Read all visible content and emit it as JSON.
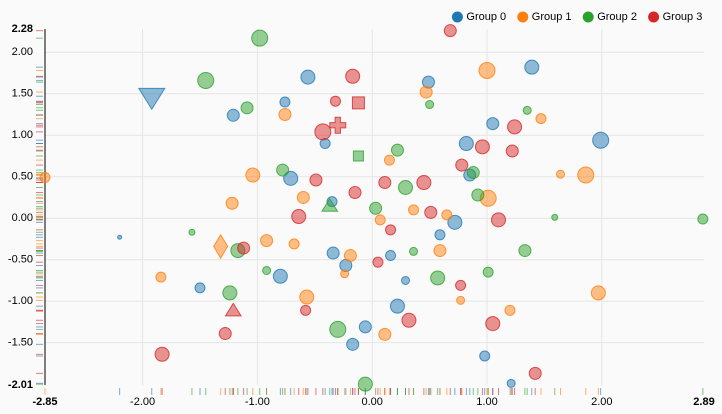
{
  "chart_data": {
    "type": "scatter",
    "xlim": [
      -2.85,
      2.89
    ],
    "ylim": [
      -2.01,
      2.28
    ],
    "xticks": [
      {
        "value": -2,
        "label": "-2.00"
      },
      {
        "value": -1,
        "label": "-1.00"
      },
      {
        "value": 0,
        "label": "0.00"
      },
      {
        "value": 1,
        "label": "1.00"
      },
      {
        "value": 2,
        "label": "2.00"
      }
    ],
    "yticks": [
      {
        "value": 2,
        "label": "2.00"
      },
      {
        "value": 1.5,
        "label": "1.50"
      },
      {
        "value": 1,
        "label": "1.00"
      },
      {
        "value": 0.5,
        "label": "0.50"
      },
      {
        "value": 0,
        "label": "0.00"
      },
      {
        "value": -0.5,
        "label": "-0.50"
      },
      {
        "value": -1,
        "label": "-1.00"
      },
      {
        "value": -1.5,
        "label": "-1.50"
      }
    ],
    "grid": true,
    "legend": "top-right",
    "rug": true,
    "series": [
      {
        "name": "Group 0",
        "color": "#1f77b4",
        "x": [
          -1.92,
          -0.56,
          0.49,
          1.39,
          1.99,
          1.05,
          0.82,
          -0.71,
          -0.41,
          -1.21,
          -0.76,
          0.72,
          -0.23,
          -0.34,
          -0.8,
          0.16,
          -0.06,
          -0.17,
          0.98,
          0.59,
          -1.5,
          -2.2,
          0.22,
          0.85,
          1.21,
          0.29,
          -0.35
        ],
        "y": [
          1.47,
          1.7,
          1.64,
          1.82,
          0.94,
          1.14,
          0.9,
          0.48,
          0.9,
          1.24,
          1.4,
          -0.05,
          -0.57,
          -0.42,
          -0.7,
          -0.45,
          -1.31,
          -1.52,
          -1.66,
          -0.2,
          -0.84,
          -0.23,
          -1.06,
          0.52,
          -1.99,
          -0.75,
          0.2
        ],
        "size": [
          10,
          7,
          6,
          7,
          8,
          6,
          7,
          7,
          5,
          6,
          5,
          7,
          6,
          6,
          7,
          5,
          6,
          6,
          5,
          5,
          5,
          2,
          7,
          6,
          4,
          4,
          5
        ],
        "shape": [
          "triangle-down",
          "circle",
          "circle",
          "circle",
          "circle",
          "circle",
          "circle",
          "circle",
          "circle",
          "circle",
          "circle",
          "circle",
          "circle",
          "circle",
          "circle",
          "circle",
          "circle",
          "circle",
          "circle",
          "circle",
          "circle",
          "circle",
          "circle",
          "circle",
          "circle",
          "circle",
          "circle"
        ]
      },
      {
        "name": "Group 1",
        "color": "#ff7f0e",
        "x": [
          1.0,
          0.47,
          1.47,
          1.86,
          1.01,
          -0.76,
          -1.04,
          -1.22,
          -0.6,
          -0.92,
          -1.32,
          -1.84,
          -0.57,
          0.07,
          0.36,
          -0.19,
          0.65,
          1.2,
          1.97,
          0.11,
          -2.85,
          -0.24,
          -0.68,
          0.77,
          0.59,
          1.64,
          0.15
        ],
        "y": [
          1.78,
          1.52,
          1.2,
          0.52,
          0.24,
          1.25,
          0.52,
          0.18,
          0.25,
          -0.27,
          -0.34,
          -0.71,
          -0.95,
          -0.02,
          0.1,
          -0.45,
          0.04,
          -1.11,
          -0.9,
          -1.4,
          0.49,
          -0.67,
          -0.31,
          -0.99,
          -0.39,
          0.53,
          0.7
        ],
        "size": [
          8,
          6,
          5,
          8,
          8,
          6,
          7,
          6,
          6,
          6,
          9,
          5,
          7,
          5,
          5,
          6,
          5,
          5,
          7,
          6,
          5,
          4,
          5,
          4,
          6,
          4,
          5
        ],
        "shape": [
          "circle",
          "circle",
          "circle",
          "circle",
          "circle",
          "circle",
          "circle",
          "circle",
          "circle",
          "circle",
          "diamond",
          "circle",
          "circle",
          "circle",
          "circle",
          "circle",
          "circle",
          "circle",
          "circle",
          "circle",
          "circle",
          "circle",
          "circle",
          "circle",
          "circle",
          "circle",
          "circle"
        ]
      },
      {
        "name": "Group 2",
        "color": "#2ca02c",
        "x": [
          -0.98,
          -1.45,
          -1.09,
          0.22,
          0.29,
          0.88,
          0.92,
          0.03,
          -0.37,
          -0.12,
          -1.17,
          -1.24,
          -0.3,
          0.57,
          1.33,
          1.01,
          -0.06,
          2.88,
          -1.57,
          -0.78,
          1.35,
          0.5,
          -0.92,
          0.36,
          1.59
        ],
        "y": [
          2.17,
          1.66,
          1.33,
          0.82,
          0.37,
          0.55,
          0.28,
          0.12,
          0.14,
          0.75,
          -0.39,
          -0.9,
          -1.34,
          -0.72,
          -0.39,
          -0.65,
          -2.0,
          -0.01,
          -0.17,
          0.58,
          1.3,
          1.37,
          -0.63,
          -0.4,
          0.01
        ],
        "size": [
          8,
          8,
          6,
          6,
          7,
          6,
          6,
          6,
          6,
          5,
          7,
          7,
          8,
          7,
          6,
          5,
          7,
          5,
          3,
          6,
          4,
          4,
          4,
          4,
          3
        ],
        "shape": [
          "circle",
          "circle",
          "circle",
          "circle",
          "circle",
          "circle",
          "circle",
          "circle",
          "triangle-up",
          "square",
          "circle",
          "circle",
          "circle",
          "circle",
          "circle",
          "circle",
          "circle",
          "circle",
          "circle",
          "circle",
          "circle",
          "circle",
          "circle",
          "circle",
          "circle"
        ]
      },
      {
        "name": "Group 3",
        "color": "#d62728",
        "x": [
          -0.17,
          -0.12,
          -0.3,
          -0.43,
          -0.32,
          0.96,
          1.24,
          1.22,
          0.78,
          0.45,
          0.11,
          -0.15,
          -0.64,
          -0.49,
          0.51,
          1.1,
          -1.21,
          -1.28,
          -1.83,
          0.32,
          1.05,
          1.42,
          0.68,
          0.16,
          0.77,
          -0.58,
          0.05,
          -1.12
        ],
        "y": [
          1.71,
          1.39,
          1.12,
          1.04,
          1.41,
          0.86,
          1.1,
          0.81,
          0.64,
          0.43,
          0.43,
          0.31,
          0.02,
          0.46,
          0.07,
          -0.02,
          -1.12,
          -1.39,
          -1.64,
          -1.23,
          -1.27,
          -1.87,
          2.26,
          -0.14,
          -0.81,
          -1.11,
          -0.53,
          -0.36
        ],
        "size": [
          7,
          6,
          8,
          8,
          5,
          7,
          7,
          6,
          6,
          7,
          6,
          6,
          7,
          6,
          6,
          7,
          6,
          6,
          7,
          7,
          7,
          6,
          6,
          5,
          5,
          5,
          5,
          6
        ],
        "shape": [
          "circle",
          "square",
          "cross",
          "circle",
          "circle",
          "circle",
          "circle",
          "circle",
          "circle",
          "circle",
          "circle",
          "circle",
          "circle",
          "circle",
          "circle",
          "circle",
          "triangle-up",
          "circle",
          "circle",
          "circle",
          "circle",
          "circle",
          "circle",
          "circle",
          "circle",
          "circle",
          "circle",
          "circle"
        ]
      }
    ]
  }
}
